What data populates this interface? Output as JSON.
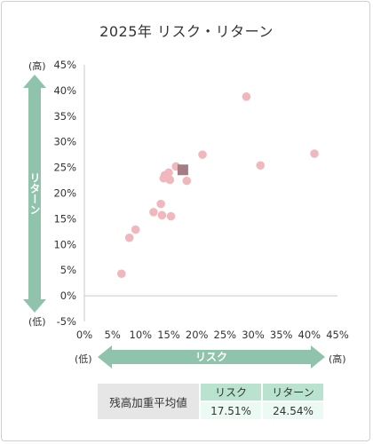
{
  "title": "2025年 リスク・リターン",
  "labels": {
    "y_high": "(高)",
    "y_low": "(低)",
    "x_low": "(低)",
    "x_high": "(高)"
  },
  "colors": {
    "point": "#f0b8bc",
    "highlight": "#a47c84",
    "arrow": "#8fc3ab",
    "axis": "#c9c9c9"
  },
  "chart_data": {
    "type": "scatter",
    "title": "2025年 リスク・リターン",
    "xlabel": "リスク",
    "ylabel": "リターン",
    "xlim": [
      0,
      45
    ],
    "ylim": [
      -5,
      45
    ],
    "x_ticks": [
      "0%",
      "5%",
      "10%",
      "15%",
      "20%",
      "25%",
      "30%",
      "35%",
      "40%",
      "45%"
    ],
    "y_ticks": [
      "45%",
      "40%",
      "35%",
      "30%",
      "25%",
      "20%",
      "15%",
      "10%",
      "5%",
      "0%",
      "-5%"
    ],
    "grid": false,
    "points": [
      {
        "x": 6.6,
        "y": 4.3
      },
      {
        "x": 8.0,
        "y": 11.3
      },
      {
        "x": 9.1,
        "y": 12.9
      },
      {
        "x": 12.3,
        "y": 16.3
      },
      {
        "x": 13.6,
        "y": 17.9
      },
      {
        "x": 13.8,
        "y": 15.7
      },
      {
        "x": 14.1,
        "y": 22.9
      },
      {
        "x": 14.3,
        "y": 23.5
      },
      {
        "x": 15.0,
        "y": 24.0
      },
      {
        "x": 15.2,
        "y": 22.6
      },
      {
        "x": 15.4,
        "y": 15.5
      },
      {
        "x": 16.3,
        "y": 25.2
      },
      {
        "x": 18.2,
        "y": 22.4
      },
      {
        "x": 21.0,
        "y": 27.5
      },
      {
        "x": 28.8,
        "y": 38.8
      },
      {
        "x": 31.3,
        "y": 25.4
      },
      {
        "x": 40.9,
        "y": 27.7
      }
    ],
    "weighted_average": {
      "x": 17.51,
      "y": 24.54
    }
  },
  "weighted_table": {
    "row_label": "残高加重平均値",
    "risk_header": "リスク",
    "return_header": "リターン",
    "risk_value": "17.51%",
    "return_value": "24.54%"
  }
}
